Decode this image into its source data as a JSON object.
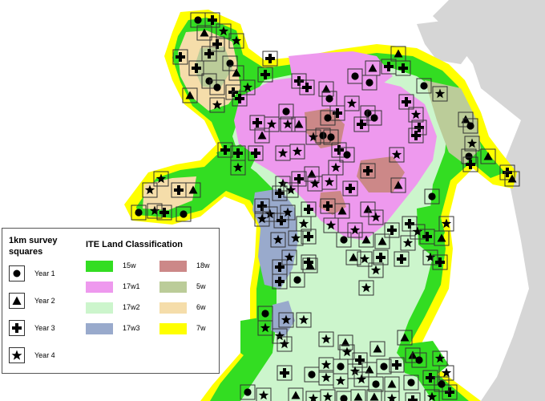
{
  "legend": {
    "survey_title": "1km survey squares",
    "survey_items": [
      {
        "label": "Year 1",
        "symbol": "circle"
      },
      {
        "label": "Year 2",
        "symbol": "triangle"
      },
      {
        "label": "Year 3",
        "symbol": "cross"
      },
      {
        "label": "Year 4",
        "symbol": "star"
      }
    ],
    "ite_title": "ITE Land Classification",
    "ite_classes": [
      {
        "label": "15w",
        "color": "#33dd22"
      },
      {
        "label": "17w1",
        "color": "#ee99ee"
      },
      {
        "label": "17w2",
        "color": "#ccf5cc"
      },
      {
        "label": "17w3",
        "color": "#99aacc"
      },
      {
        "label": "18w",
        "color": "#cc8888"
      },
      {
        "label": "5w",
        "color": "#bbcc99"
      },
      {
        "label": "6w",
        "color": "#f5ddaa"
      },
      {
        "label": "7w",
        "color": "#ffff00"
      }
    ]
  },
  "colors": {
    "land_outside": "#d4d4d4",
    "coast": "#ffff00",
    "square_border": "#333333",
    "symbol": "#000000"
  }
}
